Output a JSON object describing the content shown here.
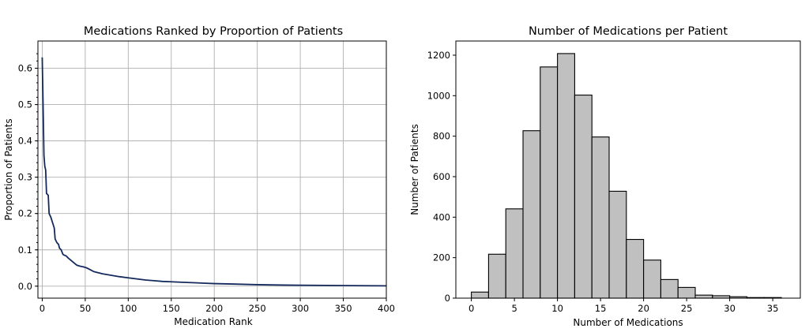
{
  "chart_data": [
    {
      "type": "line",
      "title": "Medications Ranked by Proportion of Patients",
      "xlabel": "Medication Rank",
      "ylabel": "Proportion of Patients",
      "xlim": [
        -5,
        400
      ],
      "ylim": [
        -0.033,
        0.675
      ],
      "xticks": [
        0,
        50,
        100,
        150,
        200,
        250,
        300,
        350,
        400
      ],
      "yticks": [
        0.0,
        0.1,
        0.2,
        0.3,
        0.4,
        0.5,
        0.6
      ],
      "ytick_labels": [
        "0.0",
        "0.1",
        "0.2",
        "0.3",
        "0.4",
        "0.5",
        "0.6"
      ],
      "grid": true,
      "color": "#142a5c",
      "x": [
        0,
        1,
        2,
        3,
        4,
        5,
        6,
        7,
        8,
        10,
        12,
        14,
        15,
        17,
        19,
        20,
        22,
        24,
        25,
        28,
        30,
        33,
        36,
        40,
        44,
        48,
        52,
        56,
        60,
        65,
        70,
        80,
        90,
        100,
        110,
        120,
        130,
        140,
        150,
        160,
        180,
        200,
        220,
        250,
        280,
        300,
        330,
        360,
        400
      ],
      "y": [
        0.63,
        0.5,
        0.36,
        0.33,
        0.32,
        0.255,
        0.253,
        0.25,
        0.2,
        0.19,
        0.175,
        0.16,
        0.13,
        0.12,
        0.115,
        0.105,
        0.1,
        0.088,
        0.086,
        0.083,
        0.078,
        0.072,
        0.066,
        0.058,
        0.055,
        0.053,
        0.05,
        0.045,
        0.04,
        0.037,
        0.034,
        0.03,
        0.026,
        0.023,
        0.02,
        0.017,
        0.015,
        0.013,
        0.012,
        0.011,
        0.009,
        0.007,
        0.006,
        0.004,
        0.003,
        0.0025,
        0.002,
        0.0015,
        0.001
      ]
    },
    {
      "type": "bar",
      "title": "Number of Medications per Patient",
      "xlabel": "Number of Medications",
      "ylabel": "Number of Patients",
      "xlim": [
        -1.8,
        38.2
      ],
      "ylim": [
        0,
        1270
      ],
      "xticks": [
        0,
        5,
        10,
        15,
        20,
        25,
        30,
        35
      ],
      "yticks": [
        0,
        200,
        400,
        600,
        800,
        1000,
        1200
      ],
      "bin_edges": [
        0,
        2,
        4,
        6,
        8,
        10,
        12,
        14,
        16,
        18,
        20,
        22,
        24,
        26,
        28,
        30,
        32,
        34,
        36
      ],
      "values": [
        30,
        217,
        441,
        827,
        1142,
        1208,
        1003,
        796,
        528,
        290,
        188,
        92,
        53,
        15,
        12,
        7,
        3,
        3
      ],
      "color": "#c0c0c0"
    }
  ]
}
